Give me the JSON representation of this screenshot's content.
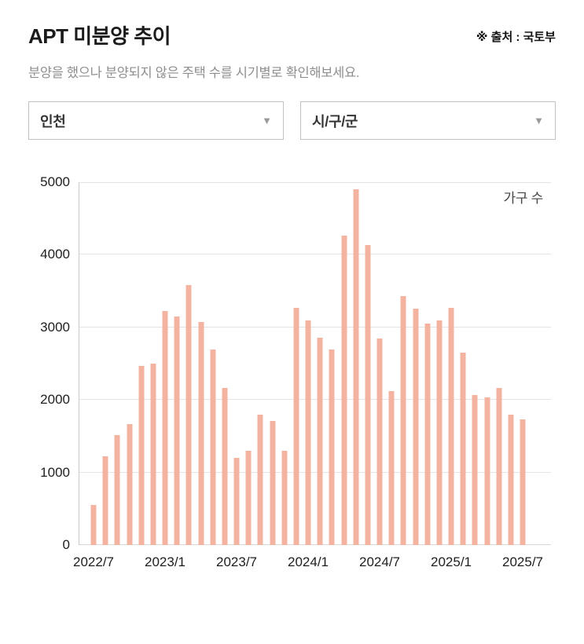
{
  "header": {
    "title": "APT 미분양 추이",
    "source": "※ 출처 : 국토부",
    "subtitle": "분양을 했으나 분양되지 않은 주택 수를 시기별로 확인해보세요."
  },
  "filters": {
    "region": {
      "value": "인천"
    },
    "district": {
      "value": "시/구/군"
    }
  },
  "chart_data": {
    "type": "bar",
    "title": "APT 미분양 추이",
    "unit_label": "가구 수",
    "categories": [
      "2022/7",
      "2022/8",
      "2022/9",
      "2022/10",
      "2022/11",
      "2022/12",
      "2023/1",
      "2023/2",
      "2023/3",
      "2023/4",
      "2023/5",
      "2023/6",
      "2023/7",
      "2023/8",
      "2023/9",
      "2023/10",
      "2023/11",
      "2023/12",
      "2024/1",
      "2024/2",
      "2024/3",
      "2024/4",
      "2024/5",
      "2024/6",
      "2024/7",
      "2024/8",
      "2024/9",
      "2024/10",
      "2024/11",
      "2024/12",
      "2025/1",
      "2025/2",
      "2025/3",
      "2025/4",
      "2025/5",
      "2025/6",
      "2025/7"
    ],
    "values": [
      550,
      1220,
      1520,
      1670,
      2470,
      2500,
      3220,
      3150,
      3580,
      3070,
      2700,
      2160,
      1200,
      1300,
      1800,
      1710,
      1300,
      3270,
      3090,
      2860,
      2690,
      4260,
      4900,
      4130,
      2850,
      2120,
      3430,
      3260,
      3050,
      3100,
      3270,
      2650,
      2070,
      2030,
      2160,
      1800,
      1730
    ],
    "x_tick_labels": [
      "2022/7",
      "2023/1",
      "2023/7",
      "2024/1",
      "2024/7",
      "2025/1",
      "2025/7"
    ],
    "x_tick_indices": [
      0,
      6,
      12,
      18,
      24,
      30,
      36
    ],
    "y_ticks": [
      0,
      1000,
      2000,
      3000,
      4000,
      5000
    ],
    "ylim": [
      0,
      5000
    ],
    "bar_color": "#F4B3A1",
    "grid": true,
    "legend_position": "top-right"
  }
}
